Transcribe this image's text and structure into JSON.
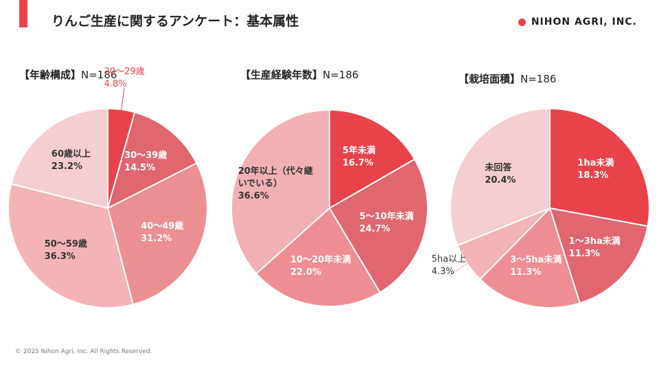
{
  "header": {
    "title": "りんご生産に関するアンケート：基本属性",
    "logo": "NIHON AGRI, INC."
  },
  "footer": "© 2025 Nihon Agri, Inc. All Rights Reserved.",
  "chart_data": [
    {
      "type": "pie",
      "title": "【年齢構成】",
      "subtitle": "N=186",
      "categories": [
        "20～29歳",
        "30～39歳",
        "40～49歳",
        "50～59歳",
        "60歳以上"
      ],
      "values": [
        4.8,
        14.5,
        31.2,
        36.3,
        23.2
      ],
      "value_labels": [
        "4.8%",
        "14.5%",
        "31.2%",
        "36.3%",
        "23.2%"
      ],
      "colors": [
        "#e8434a",
        "#e06670",
        "#ec8f92",
        "#f3b3b7",
        "#f6cdd0"
      ]
    },
    {
      "type": "pie",
      "title": "【生産経験年数】",
      "subtitle": "N=186",
      "categories": [
        "5年未満",
        "5～10年未満",
        "10～20年未満",
        "20年以上（代々継いでいる）"
      ],
      "values": [
        16.7,
        24.7,
        22.0,
        36.6
      ],
      "value_labels": [
        "16.7%",
        "24.7%",
        "22.0%",
        "36.6%"
      ],
      "colors": [
        "#e8434a",
        "#e06670",
        "#ee8e93",
        "#f2b0b5"
      ]
    },
    {
      "type": "pie",
      "title": "【栽培面積】",
      "subtitle": "N=186",
      "categories": [
        "1ha未満",
        "1～3ha未満",
        "3～5ha未満",
        "5ha以上",
        "未回答"
      ],
      "values": [
        18.3,
        11.3,
        11.3,
        4.3,
        20.4
      ],
      "value_labels": [
        "18.3%",
        "11.3%",
        "11.3%",
        "4.3%",
        "20.4%"
      ],
      "colors": [
        "#e8434a",
        "#e06670",
        "#ee8e93",
        "#f3b3b7",
        "#f6cdd0"
      ]
    }
  ]
}
